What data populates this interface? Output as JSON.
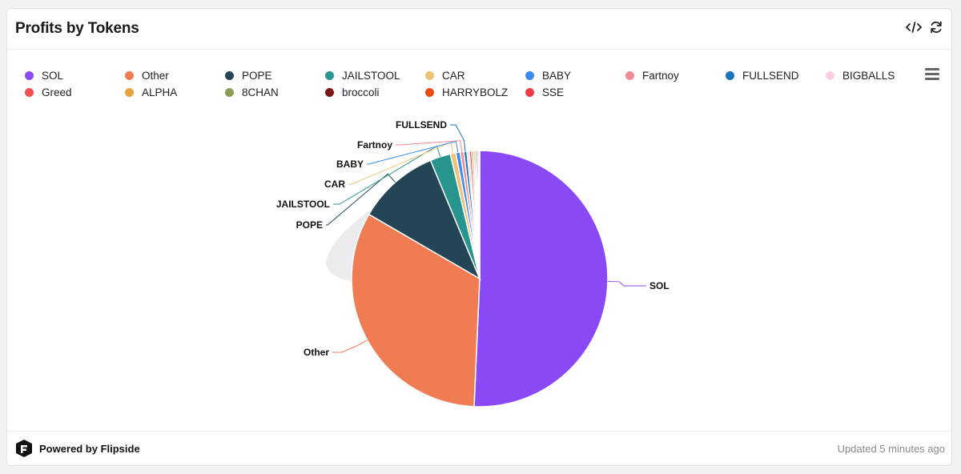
{
  "header": {
    "title": "Profits by Tokens"
  },
  "footer": {
    "powered_by": "Powered by Flipside",
    "updated": "Updated 5 minutes ago"
  },
  "icons": {
    "embed": "code-icon",
    "refresh": "refresh-icon",
    "menu": "hamburger-menu-icon",
    "brand": "flipside-logo-icon"
  },
  "chart_data": {
    "type": "pie",
    "legend_position": "top",
    "slices": [
      {
        "label": "SOL",
        "value": 50.9,
        "color": "#8b49f6",
        "show_label": true
      },
      {
        "label": "Other",
        "value": 32.8,
        "color": "#f07c53",
        "show_label": true
      },
      {
        "label": "POPE",
        "value": 10.4,
        "color": "#234556",
        "show_label": true
      },
      {
        "label": "JAILSTOOL",
        "value": 2.6,
        "color": "#27958e",
        "show_label": true
      },
      {
        "label": "CAR",
        "value": 0.7,
        "color": "#eec278",
        "show_label": true
      },
      {
        "label": "BABY",
        "value": 0.55,
        "color": "#3a8aef",
        "show_label": true
      },
      {
        "label": "Fartnoy",
        "value": 0.45,
        "color": "#f08a94",
        "show_label": true
      },
      {
        "label": "FULLSEND",
        "value": 0.4,
        "color": "#1a74b8",
        "show_label": true
      },
      {
        "label": "BIGBALLS",
        "value": 0.3,
        "color": "#fbcde0",
        "show_label": false
      },
      {
        "label": "Greed",
        "value": 0.3,
        "color": "#ef5152",
        "show_label": false
      },
      {
        "label": "ALPHA",
        "value": 0.25,
        "color": "#eaa23c",
        "show_label": false
      },
      {
        "label": "8CHAN",
        "value": 0.2,
        "color": "#8d9e54",
        "show_label": false
      },
      {
        "label": "broccoli",
        "value": 0.2,
        "color": "#7a1616",
        "show_label": false
      },
      {
        "label": "HARRYBOLZ",
        "value": 0.2,
        "color": "#e84a12",
        "show_label": false
      },
      {
        "label": "SSE",
        "value": 0.15,
        "color": "#ef3b4c",
        "show_label": false
      }
    ]
  }
}
